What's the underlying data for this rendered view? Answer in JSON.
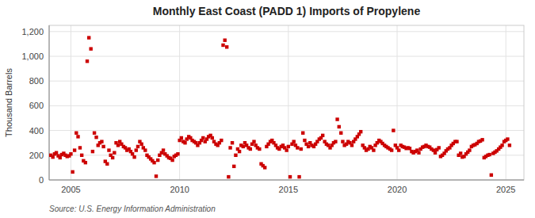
{
  "chart_data": {
    "type": "scatter",
    "title": "Monthly East Coast (PADD 1) Imports of Propylene",
    "y_label": "Thousand Barrels",
    "source": "Source: U.S. Energy Information Administration",
    "color": "#cc0000",
    "marker": "square",
    "grid": true,
    "xlim": [
      2004.0,
      2025.83
    ],
    "ylim": [
      0,
      1250
    ],
    "xticks": [
      2005,
      2010,
      2015,
      2020,
      2025
    ],
    "yticks": [
      0,
      200,
      400,
      600,
      800,
      {
        "value": 1000,
        "label": "1,000"
      },
      {
        "value": 1200,
        "label": "1,200"
      }
    ],
    "x": [
      2004.08,
      2004.17,
      2004.25,
      2004.33,
      2004.42,
      2004.5,
      2004.58,
      2004.67,
      2004.75,
      2004.83,
      2004.92,
      2005.0,
      2005.08,
      2005.17,
      2005.25,
      2005.33,
      2005.42,
      2005.5,
      2005.58,
      2005.67,
      2005.75,
      2005.83,
      2005.92,
      2006.0,
      2006.08,
      2006.17,
      2006.25,
      2006.33,
      2006.42,
      2006.5,
      2006.58,
      2006.67,
      2006.75,
      2006.83,
      2006.92,
      2007.0,
      2007.08,
      2007.17,
      2007.25,
      2007.33,
      2007.42,
      2007.5,
      2007.58,
      2007.67,
      2007.75,
      2007.83,
      2007.92,
      2008.0,
      2008.08,
      2008.17,
      2008.25,
      2008.33,
      2008.42,
      2008.5,
      2008.58,
      2008.67,
      2008.75,
      2008.83,
      2008.92,
      2009.0,
      2009.08,
      2009.17,
      2009.25,
      2009.33,
      2009.42,
      2009.5,
      2009.58,
      2009.67,
      2009.75,
      2009.83,
      2009.92,
      2010.0,
      2010.08,
      2010.17,
      2010.25,
      2010.33,
      2010.42,
      2010.5,
      2010.58,
      2010.67,
      2010.75,
      2010.83,
      2010.92,
      2011.0,
      2011.08,
      2011.17,
      2011.25,
      2011.33,
      2011.42,
      2011.5,
      2011.58,
      2011.67,
      2011.75,
      2011.83,
      2011.92,
      2012.0,
      2012.08,
      2012.17,
      2012.25,
      2012.33,
      2012.42,
      2012.5,
      2012.58,
      2012.67,
      2012.75,
      2012.83,
      2012.92,
      2013.0,
      2013.08,
      2013.17,
      2013.25,
      2013.33,
      2013.42,
      2013.5,
      2013.58,
      2013.67,
      2013.75,
      2013.83,
      2013.92,
      2014.0,
      2014.08,
      2014.17,
      2014.25,
      2014.33,
      2014.42,
      2014.5,
      2014.58,
      2014.67,
      2014.75,
      2014.83,
      2014.92,
      2015.0,
      2015.08,
      2015.17,
      2015.25,
      2015.33,
      2015.42,
      2015.5,
      2015.58,
      2015.67,
      2015.75,
      2015.83,
      2015.92,
      2016.0,
      2016.08,
      2016.17,
      2016.25,
      2016.33,
      2016.42,
      2016.5,
      2016.58,
      2016.67,
      2016.75,
      2016.83,
      2016.92,
      2017.0,
      2017.08,
      2017.17,
      2017.25,
      2017.33,
      2017.42,
      2017.5,
      2017.58,
      2017.67,
      2017.75,
      2017.83,
      2017.92,
      2018.0,
      2018.08,
      2018.17,
      2018.25,
      2018.33,
      2018.42,
      2018.5,
      2018.58,
      2018.67,
      2018.75,
      2018.83,
      2018.92,
      2019.0,
      2019.08,
      2019.17,
      2019.25,
      2019.33,
      2019.42,
      2019.5,
      2019.58,
      2019.67,
      2019.75,
      2019.83,
      2019.92,
      2020.0,
      2020.08,
      2020.17,
      2020.25,
      2020.33,
      2020.42,
      2020.5,
      2020.58,
      2020.67,
      2020.75,
      2020.83,
      2020.92,
      2021.0,
      2021.08,
      2021.17,
      2021.25,
      2021.33,
      2021.42,
      2021.5,
      2021.58,
      2021.67,
      2021.75,
      2021.83,
      2021.92,
      2022.0,
      2022.08,
      2022.17,
      2022.25,
      2022.33,
      2022.42,
      2022.5,
      2022.58,
      2022.67,
      2022.75,
      2022.83,
      2022.92,
      2023.0,
      2023.08,
      2023.17,
      2023.25,
      2023.33,
      2023.42,
      2023.5,
      2023.58,
      2023.67,
      2023.75,
      2023.83,
      2023.92,
      2024.0,
      2024.08,
      2024.17,
      2024.25,
      2024.33,
      2024.42,
      2024.5,
      2024.58,
      2024.67,
      2024.75,
      2024.83,
      2024.92,
      2025.0,
      2025.08,
      2025.17
    ],
    "values": [
      200,
      185,
      210,
      220,
      195,
      180,
      205,
      215,
      200,
      190,
      195,
      210,
      65,
      240,
      380,
      350,
      260,
      200,
      155,
      140,
      960,
      1150,
      1060,
      230,
      380,
      345,
      280,
      300,
      310,
      270,
      150,
      130,
      240,
      200,
      180,
      220,
      300,
      280,
      310,
      290,
      270,
      260,
      240,
      250,
      230,
      210,
      185,
      240,
      270,
      310,
      290,
      260,
      240,
      200,
      185,
      170,
      155,
      140,
      30,
      160,
      200,
      220,
      240,
      210,
      195,
      180,
      175,
      160,
      190,
      200,
      210,
      320,
      340,
      310,
      300,
      330,
      350,
      340,
      320,
      310,
      300,
      280,
      300,
      320,
      340,
      310,
      330,
      350,
      360,
      340,
      310,
      290,
      280,
      300,
      320,
      1090,
      1130,
      1075,
      25,
      260,
      300,
      110,
      200,
      250,
      230,
      280,
      270,
      300,
      280,
      260,
      250,
      290,
      310,
      280,
      260,
      250,
      130,
      115,
      100,
      270,
      290,
      310,
      320,
      300,
      280,
      260,
      250,
      270,
      280,
      260,
      240,
      270,
      25,
      290,
      310,
      280,
      260,
      25,
      250,
      380,
      320,
      290,
      270,
      300,
      280,
      270,
      290,
      310,
      330,
      340,
      360,
      310,
      290,
      280,
      260,
      280,
      300,
      310,
      490,
      430,
      380,
      310,
      280,
      290,
      310,
      300,
      280,
      310,
      330,
      350,
      370,
      390,
      280,
      260,
      240,
      250,
      270,
      260,
      240,
      280,
      300,
      320,
      310,
      295,
      280,
      270,
      260,
      250,
      240,
      400,
      280,
      260,
      240,
      280,
      270,
      265,
      255,
      260,
      255,
      230,
      220,
      230,
      240,
      220,
      250,
      265,
      270,
      280,
      270,
      265,
      250,
      240,
      220,
      245,
      260,
      190,
      200,
      215,
      235,
      250,
      260,
      280,
      295,
      310,
      310,
      200,
      215,
      185,
      190,
      210,
      225,
      240,
      270,
      280,
      285,
      295,
      310,
      315,
      325,
      180,
      190,
      200,
      205,
      40,
      215,
      225,
      235,
      250,
      265,
      280,
      310,
      320,
      330,
      280
    ]
  }
}
